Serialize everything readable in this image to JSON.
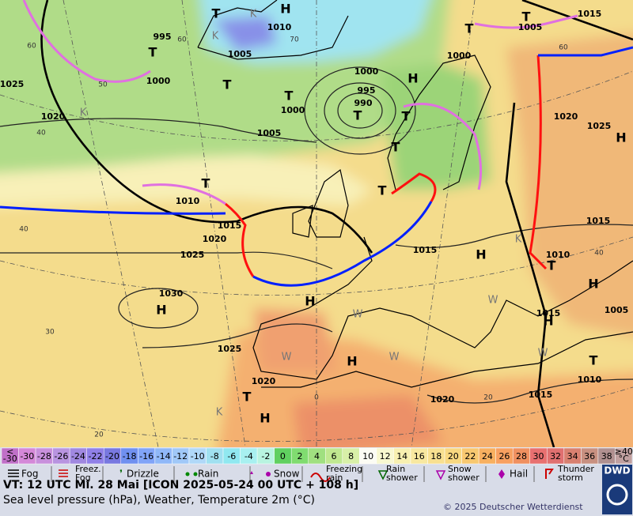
{
  "map": {
    "pressure_labels": [
      "1015",
      "995",
      "1000",
      "1010",
      "1005",
      "1025",
      "1020",
      "1000",
      "995",
      "990",
      "1000",
      "1005",
      "1005",
      "1000",
      "1020",
      "1025",
      "1010",
      "1015",
      "1020",
      "1025",
      "1015",
      "1015",
      "1010",
      "1030",
      "1015",
      "1005",
      "1025",
      "1020",
      "1020",
      "1015",
      "1010"
    ],
    "temperature_labels": [
      "60",
      "60",
      "50",
      "70",
      "40",
      "40",
      "30",
      "20",
      "0",
      "20",
      "40",
      "60"
    ],
    "pressure_centers": [
      "H",
      "H",
      "H",
      "H",
      "H",
      "H",
      "H",
      "H",
      "H",
      "H",
      "T",
      "T",
      "T",
      "T",
      "T",
      "T",
      "T",
      "T",
      "T",
      "T",
      "T",
      "T",
      "T",
      "T"
    ],
    "symbols": [
      "K",
      "K",
      "K",
      "K",
      "W",
      "W",
      "W",
      "W",
      "W",
      "K"
    ]
  },
  "legend": {
    "temperature_scale": {
      "below": [
        "<",
        "-30"
      ],
      "values": [
        -30,
        -28,
        -26,
        -24,
        -22,
        -20,
        -18,
        -16,
        -14,
        -12,
        -10,
        -8,
        -6,
        -4,
        -2,
        0,
        2,
        4,
        6,
        8,
        10,
        12,
        14,
        16,
        18,
        20,
        22,
        24,
        26,
        28,
        30,
        32,
        34,
        36,
        38
      ],
      "colors": [
        "#d488d8",
        "#c890dc",
        "#b894e0",
        "#a088e0",
        "#9080e8",
        "#7878e0",
        "#7090f0",
        "#80a4f8",
        "#90b8f8",
        "#a0c8f8",
        "#b0d8f8",
        "#a0e0f0",
        "#90e8f0",
        "#a8f0f0",
        "#b8f4e0",
        "#60d060",
        "#80dc70",
        "#a0e080",
        "#c0e890",
        "#d8f0a8",
        "#fcfcf4",
        "#f8f8d0",
        "#f8f0b0",
        "#f8e8a0",
        "#f8e090",
        "#f8d880",
        "#f8c870",
        "#f8b060",
        "#f8a060",
        "#f09060",
        "#e87070",
        "#e07070",
        "#d88070",
        "#c89080",
        "#b09090"
      ],
      "below_color": "#c070c8",
      "above": [
        "≥40",
        "°C"
      ],
      "above_color": "#c0a0a0"
    },
    "weather": [
      [
        "Fog"
      ],
      [
        "Freez.",
        "Fog"
      ],
      [
        "Drizzle"
      ],
      [
        "Rain"
      ],
      [
        "Snow"
      ],
      [
        "Freezing",
        "rain"
      ],
      [
        "Rain",
        "shower"
      ],
      [
        "Snow",
        "shower"
      ],
      [
        "Hail"
      ],
      [
        "Thunder",
        "storm"
      ]
    ]
  },
  "footer": {
    "valid_time": "VT: 12 UTC Mi.  28 Mai [ICON 2025-05-24  00 UTC + 108 h]",
    "description": "Sea level pressure (hPa), Weather, Temperature 2m (°C)",
    "copyright": "© 2025 Deutscher Wetterdienst",
    "logo": "DWD"
  }
}
